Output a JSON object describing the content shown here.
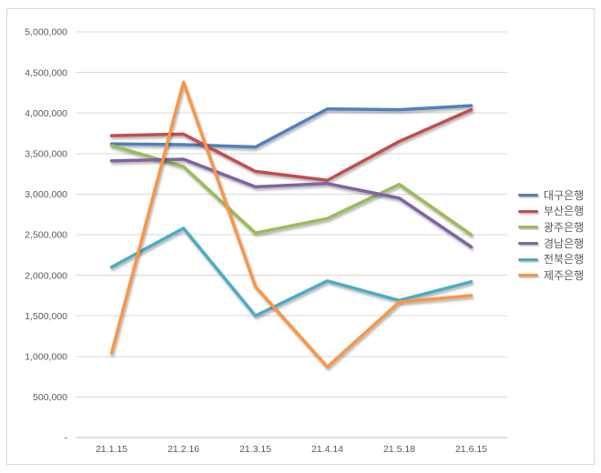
{
  "chart_data": {
    "type": "line",
    "title": "",
    "categories": [
      "21.1.15",
      "21.2.16",
      "21.3.15",
      "21.4.14",
      "21.5.18",
      "21.6.15"
    ],
    "series": [
      {
        "name": "대구은행",
        "color": "#4F81BD",
        "values": [
          3620000,
          3610000,
          3580000,
          4050000,
          4040000,
          4090000
        ]
      },
      {
        "name": "부산은행",
        "color": "#C0504D",
        "values": [
          3720000,
          3740000,
          3280000,
          3170000,
          3650000,
          4040000
        ]
      },
      {
        "name": "광주은행",
        "color": "#9BBB59",
        "values": [
          3600000,
          3340000,
          2520000,
          2700000,
          3120000,
          2500000
        ]
      },
      {
        "name": "경남은행",
        "color": "#8064A2",
        "values": [
          3410000,
          3430000,
          3090000,
          3130000,
          2950000,
          2350000
        ]
      },
      {
        "name": "전북은행",
        "color": "#4BACC6",
        "values": [
          2100000,
          2580000,
          1500000,
          1930000,
          1690000,
          1920000
        ]
      },
      {
        "name": "제주은행",
        "color": "#F79646",
        "values": [
          1040000,
          4380000,
          1860000,
          870000,
          1670000,
          1750000
        ]
      }
    ],
    "y_axis": {
      "min": 0,
      "max": 5000000,
      "step": 500000,
      "zero_label": "-"
    },
    "x_axis": {
      "labels": [
        "21.1.15",
        "21.2.16",
        "21.3.15",
        "21.4.14",
        "21.5.18",
        "21.6.15"
      ]
    },
    "legend_position": "right",
    "grid": true
  },
  "colors": {
    "gridline": "#d9d9d9",
    "axis_line": "#bfbfbf",
    "tick_text": "#595959",
    "frame_border": "#d9d9d9",
    "background": "#ffffff"
  }
}
